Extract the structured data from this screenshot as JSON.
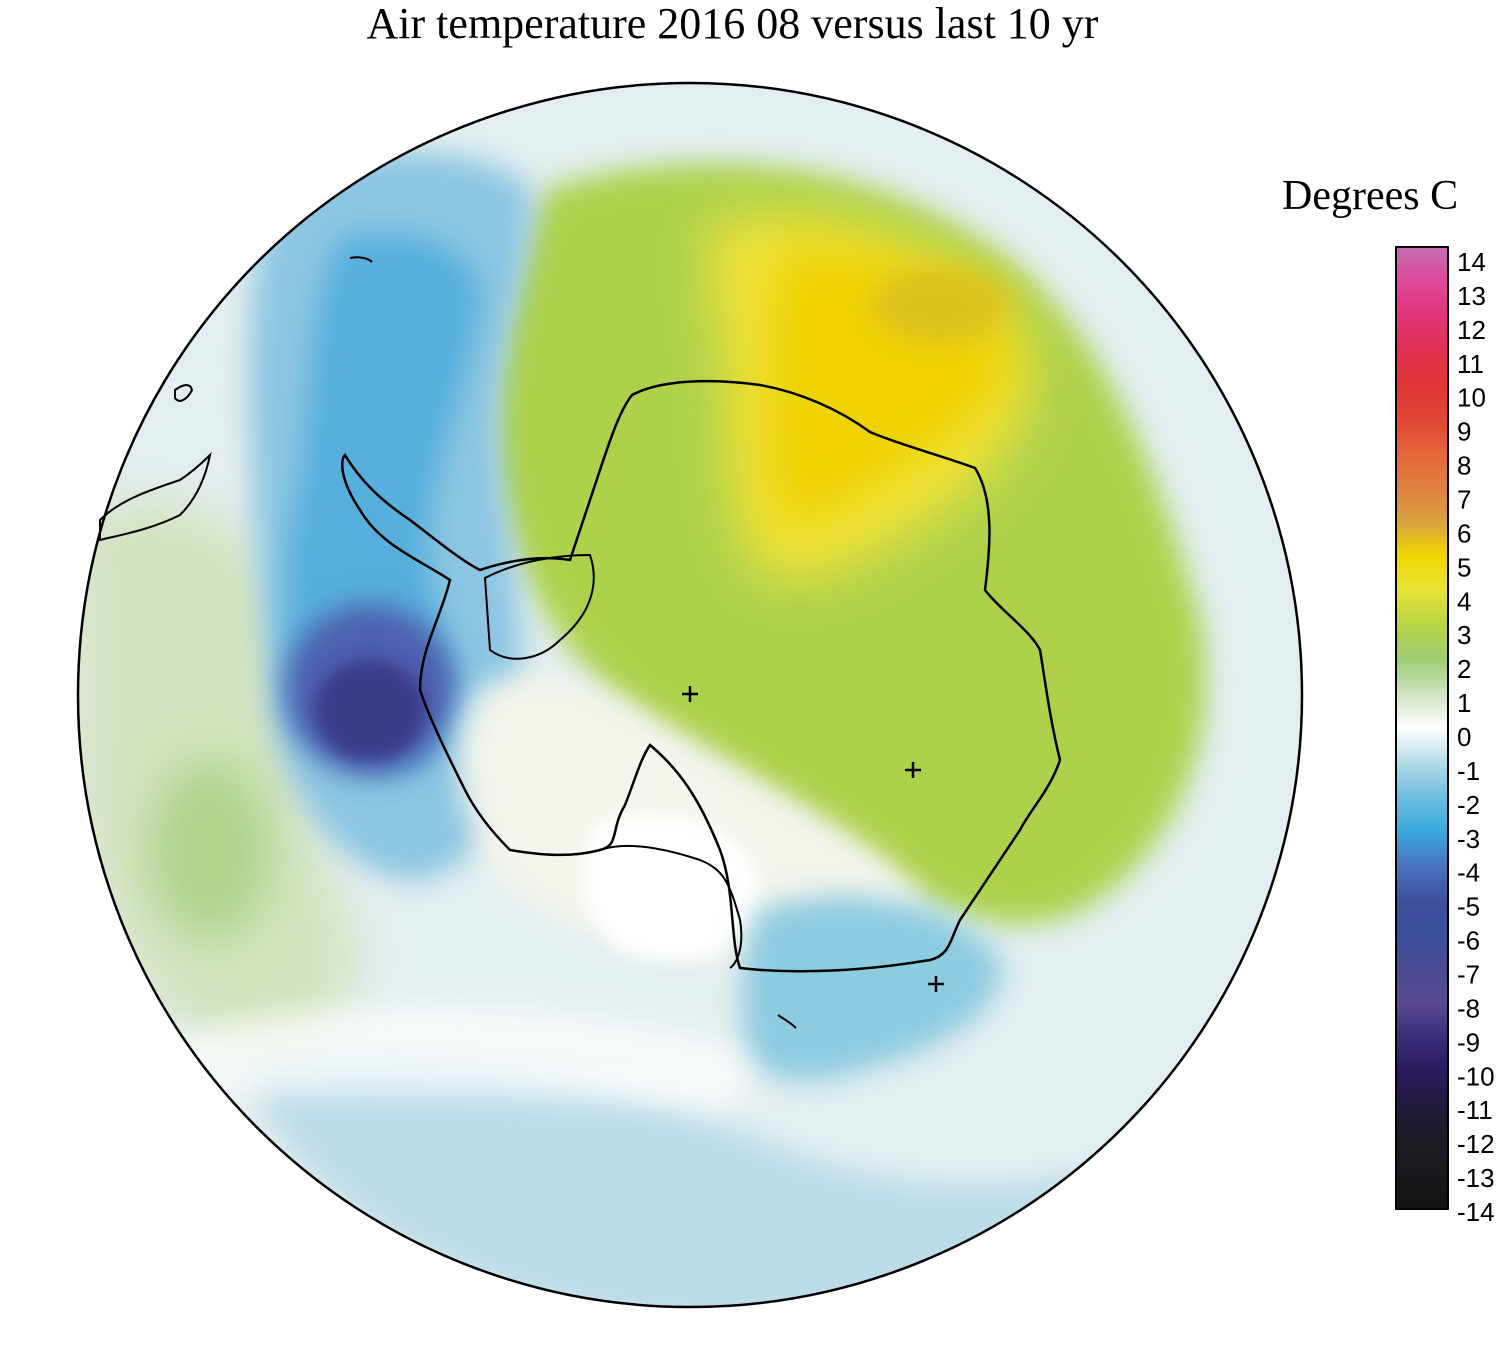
{
  "title": "Air temperature 2016 08 versus last 10 yr",
  "legend": {
    "title": "Degrees C",
    "ticks": [
      "14",
      "13",
      "12",
      "11",
      "10",
      "9",
      "8",
      "7",
      "6",
      "5",
      "4",
      "3",
      "2",
      "1",
      "0",
      "-1",
      "-2",
      "-3",
      "-4",
      "-5",
      "-6",
      "-7",
      "-8",
      "-9",
      "-10",
      "-11",
      "-12",
      "-13",
      "-14"
    ],
    "range": [
      -14,
      14
    ],
    "colors": {
      "-14": "#141414",
      "-12": "#2a1a5e",
      "-10": "#3a2d7a",
      "-8": "#5a4a92",
      "-6": "#3f4f9c",
      "-4": "#4a73c0",
      "-3": "#3aa9df",
      "-2": "#6fbfe0",
      "-1": "#b3dbe6",
      "0": "#ffffff",
      "1": "#cfe3c0",
      "2": "#9fcd73",
      "3": "#b7d443",
      "4": "#e8e43a",
      "5": "#f0d800",
      "6": "#d9a240",
      "7": "#e08040",
      "8": "#e5663a",
      "9": "#e04535",
      "10": "#e03535",
      "11": "#e03050",
      "12": "#e0357a",
      "13": "#e0489a",
      "14": "#c46fb0"
    }
  },
  "map": {
    "projection": "south polar stereographic",
    "region": "Antarctica and Southern Ocean",
    "features": {
      "coastline": "Antarctica",
      "markers": [
        "plus",
        "plus",
        "plus"
      ]
    }
  }
}
